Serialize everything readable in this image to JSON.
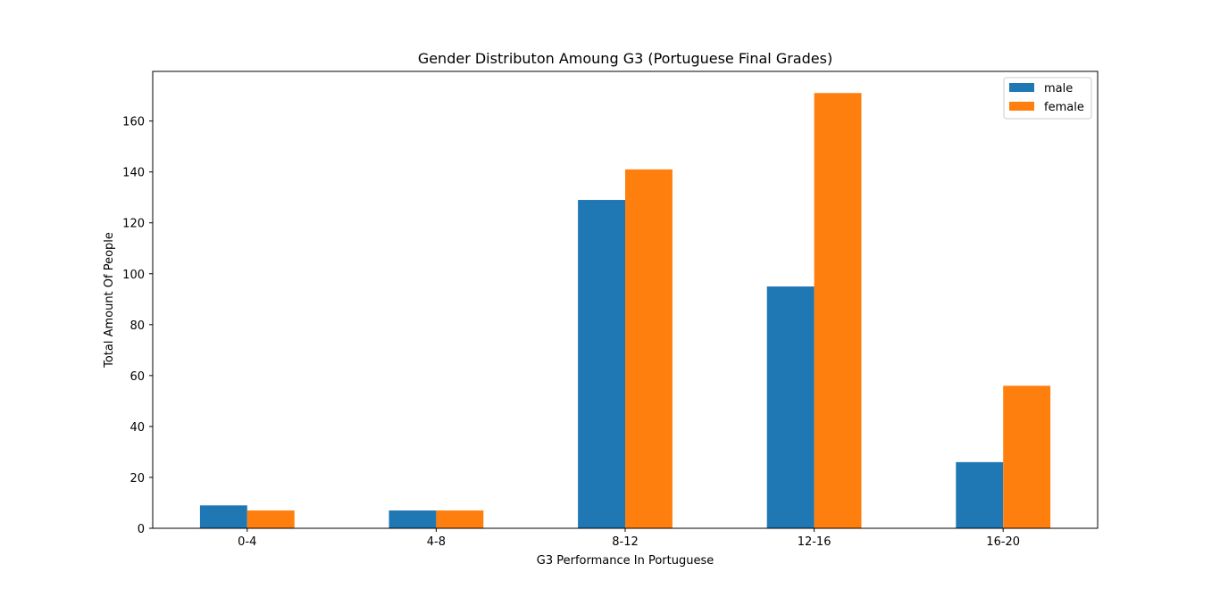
{
  "chart_data": {
    "type": "bar",
    "title": "Gender Distributon Amoung G3 (Portuguese Final Grades)",
    "xlabel": "G3 Performance In Portuguese",
    "ylabel": "Total Amount Of People",
    "categories": [
      "0-4",
      "4-8",
      "8-12",
      "12-16",
      "16-20"
    ],
    "series": [
      {
        "name": "male",
        "values": [
          9,
          7,
          129,
          95,
          26
        ],
        "color": "#1f77b4"
      },
      {
        "name": "female",
        "values": [
          7,
          7,
          141,
          171,
          56
        ],
        "color": "#ff7f0e"
      }
    ],
    "ylim": [
      0,
      179.5
    ],
    "yticks": [
      0,
      20,
      40,
      60,
      80,
      100,
      120,
      140,
      160
    ],
    "grid": false,
    "legend_position": "top-right"
  }
}
